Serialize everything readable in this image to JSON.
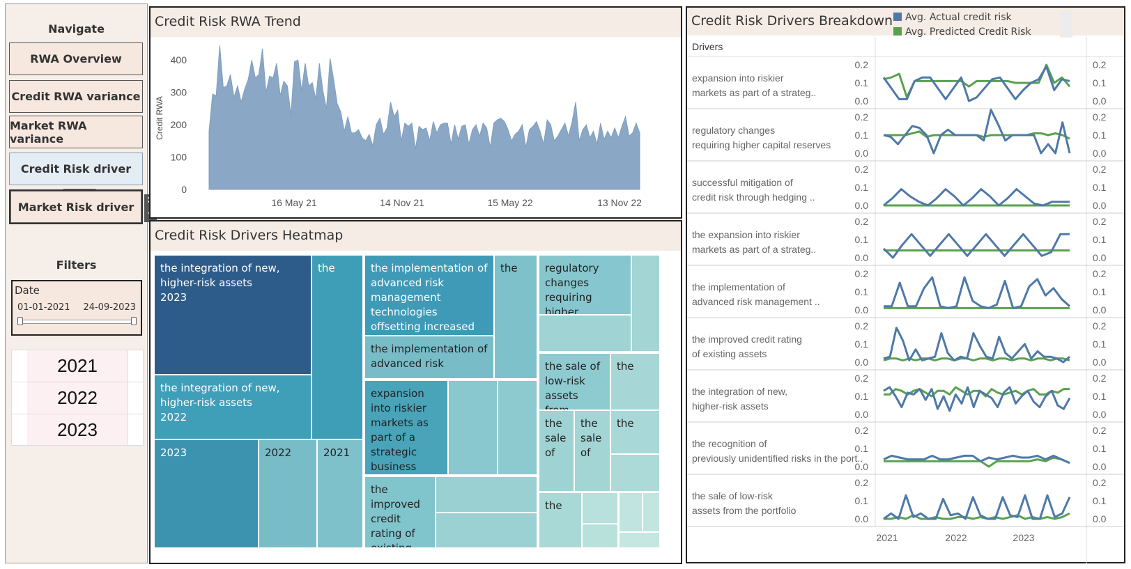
{
  "sidebar": {
    "navigate_title": "Navigate",
    "buttons": [
      "RWA Overview",
      "Credit RWA variance",
      "Market RWA variance",
      "Credit Risk driver",
      "Market Risk driver"
    ],
    "close_glyph": "✕",
    "dropdown_glyph": "▾",
    "filters_title": "Filters",
    "date_filter": {
      "label": "Date",
      "from": "01-01-2021",
      "to": "24-09-2023"
    },
    "years": [
      "2021",
      "2022",
      "2023"
    ]
  },
  "trend": {
    "title": "Credit Risk RWA Trend",
    "chart_data": {
      "type": "area",
      "title": "Credit Risk RWA Trend",
      "ylabel": "Credit RWA",
      "ylim": [
        0,
        450
      ],
      "yticks": [
        0,
        100,
        200,
        300,
        400
      ],
      "xtick_labels": [
        "16 May 21",
        "14 Nov 21",
        "15 May 22",
        "13 Nov 22"
      ],
      "color": "#8aa7c6",
      "values": [
        180,
        295,
        290,
        445,
        315,
        320,
        355,
        285,
        320,
        270,
        310,
        340,
        400,
        345,
        355,
        435,
        300,
        350,
        345,
        390,
        290,
        335,
        320,
        230,
        395,
        400,
        305,
        390,
        320,
        330,
        280,
        390,
        305,
        250,
        405,
        340,
        265,
        240,
        180,
        225,
        175,
        175,
        185,
        160,
        150,
        170,
        135,
        200,
        220,
        170,
        190,
        270,
        225,
        245,
        150,
        205,
        195,
        205,
        125,
        195,
        185,
        190,
        150,
        210,
        175,
        200,
        205,
        205,
        140,
        200,
        155,
        195,
        200,
        140,
        185,
        200,
        165,
        205,
        190,
        130,
        205,
        215,
        220,
        210,
        185,
        150,
        170,
        180,
        200,
        130,
        185,
        195,
        210,
        180,
        140,
        215,
        200,
        150,
        165,
        185,
        205,
        165,
        210,
        270,
        150,
        185,
        200,
        160,
        180,
        140,
        205,
        155,
        180,
        160,
        190,
        160,
        195,
        225,
        165,
        175,
        205,
        175
      ]
    }
  },
  "heatmap": {
    "title": "Credit Risk Drivers Heatmap",
    "cells": [
      {
        "text": "the integration of new, higher-risk assets\n2023",
        "color": "#2e5c8a",
        "fg": "#fff"
      },
      {
        "text": "the",
        "color": "#3f9eb7",
        "fg": "#fff"
      },
      {
        "text": "the integration of new, higher-risk assets\n2022",
        "color": "#3f9eb8",
        "fg": "#fff"
      },
      {
        "text": "2023",
        "color": "#3b93b0",
        "fg": "#fff"
      },
      {
        "text": "2022",
        "color": "#78bcc7",
        "fg": "#222"
      },
      {
        "text": "2021",
        "color": "#7fc1cb",
        "fg": "#222"
      },
      {
        "text": "the implementation of advanced risk management technologies offsetting increased credit risk",
        "color": "#3f9ab8",
        "fg": "#fff"
      },
      {
        "text": "the",
        "color": "#7ec1ca",
        "fg": "#222"
      },
      {
        "text": "the implementation of advanced risk",
        "color": "#78bcc8",
        "fg": "#222"
      },
      {
        "text": "expansion into riskier markets as part of a strategic business decision",
        "color": "#49a4ba",
        "fg": "#222"
      },
      {
        "text": "",
        "color": "#89c8ce",
        "fg": "#222"
      },
      {
        "text": "",
        "color": "#8ccacf",
        "fg": "#222"
      },
      {
        "text": "the improved credit rating of existing",
        "color": "#80c4cc",
        "fg": "#222"
      },
      {
        "text": "",
        "color": "#9ad0d2",
        "fg": "#222"
      },
      {
        "text": "",
        "color": "#9bd1d3",
        "fg": "#222"
      },
      {
        "text": "regulatory changes requiring higher",
        "color": "#86c6ce",
        "fg": "#222"
      },
      {
        "text": "",
        "color": "#a3d5d5",
        "fg": "#222"
      },
      {
        "text": "",
        "color": "#9fd3d4",
        "fg": "#222"
      },
      {
        "text": "the sale of low-risk assets from",
        "color": "#8ecbd0",
        "fg": "#222"
      },
      {
        "text": "the",
        "color": "#a6d7d6",
        "fg": "#222"
      },
      {
        "text": "the sale of",
        "color": "#9ed2d3",
        "fg": "#222"
      },
      {
        "text": "the sale of",
        "color": "#a3d5d5",
        "fg": "#222"
      },
      {
        "text": "the",
        "color": "#a8d8d7",
        "fg": "#222"
      },
      {
        "text": "",
        "color": "#acdad8",
        "fg": "#222"
      },
      {
        "text": "the",
        "color": "#a9d9d7",
        "fg": "#222"
      },
      {
        "text": "",
        "color": "#b8e0dc",
        "fg": "#222"
      },
      {
        "text": "",
        "color": "#b9e1dc",
        "fg": "#222"
      },
      {
        "text": "",
        "color": "#c0e4df",
        "fg": "#222"
      },
      {
        "text": "",
        "color": "#c3e5e0",
        "fg": "#222"
      },
      {
        "text": "",
        "color": "#c6e6e1",
        "fg": "#222"
      }
    ]
  },
  "drivers": {
    "title": "Credit Risk Drivers Breakdown",
    "column_header": "Drivers",
    "legend": [
      {
        "label": "Avg. Actual credit risk",
        "color": "#4e79a7"
      },
      {
        "label": "Avg. Predicted Credit Risk",
        "color": "#59a14f"
      }
    ],
    "yticks": [
      "0.2",
      "0.1",
      "0.0"
    ],
    "xtick_labels": [
      "2021",
      "2022",
      "2023"
    ],
    "chart_data": {
      "type": "line",
      "title": "Credit Risk Drivers Breakdown",
      "ylim": [
        0,
        0.2
      ],
      "rows": [
        {
          "label": "expansion into riskier markets as part of a strateg..",
          "actual": [
            0.13,
            0.07,
            0.01,
            0.01,
            0.11,
            0.13,
            0.13,
            0.07,
            0.01,
            0.07,
            0.13,
            0.0,
            0.02,
            0.07,
            0.12,
            0.13,
            0.07,
            0.01,
            0.06,
            0.1,
            0.12,
            0.19,
            0.06,
            0.12,
            0.11
          ],
          "predicted": [
            0.12,
            0.13,
            0.15,
            0.02,
            0.11,
            0.11,
            0.11,
            0.11,
            0.11,
            0.11,
            0.11,
            0.08,
            0.11,
            0.11,
            0.11,
            0.11,
            0.11,
            0.1,
            0.1,
            0.1,
            0.1,
            0.2,
            0.1,
            0.13,
            0.08
          ]
        },
        {
          "label": "regulatory changes requiring higher capital reserves",
          "actual": [
            0.1,
            0.09,
            0.05,
            0.1,
            0.15,
            0.14,
            0.1,
            0.0,
            0.1,
            0.13,
            0.1,
            0.1,
            0.1,
            0.1,
            0.07,
            0.24,
            0.16,
            0.07,
            0.1,
            0.1,
            0.1,
            0.1,
            0.0,
            0.05,
            0.0,
            0.17,
            0.0
          ],
          "predicted": [
            0.1,
            0.1,
            0.1,
            0.1,
            0.11,
            0.12,
            0.09,
            0.1,
            0.1,
            0.1,
            0.1,
            0.1,
            0.1,
            0.1,
            0.09,
            0.1,
            0.1,
            0.1,
            0.1,
            0.1,
            0.1,
            0.11,
            0.11,
            0.1,
            0.11,
            0.1,
            0.08
          ]
        },
        {
          "label": "successful mitigation of credit risk through hedging ..",
          "actual": [
            0.0,
            0.04,
            0.09,
            0.05,
            0.02,
            0.0,
            0.04,
            0.09,
            0.05,
            0.0,
            0.04,
            0.09,
            0.05,
            0.0,
            0.04,
            0.09,
            0.05,
            0.01,
            0.0,
            0.02,
            0.02,
            0.02
          ],
          "predicted": [
            0.0,
            0.0,
            0.0,
            0.0,
            0.0,
            0.0,
            0.0,
            0.0,
            0.0,
            0.0,
            0.0,
            0.0,
            0.0,
            0.0,
            0.0,
            0.0,
            0.0,
            0.0,
            0.0,
            0.0,
            0.0,
            0.0
          ]
        },
        {
          "label": "the expansion into riskier markets as part of a strateg..",
          "actual": [
            0.05,
            0.0,
            0.07,
            0.13,
            0.07,
            0.01,
            0.07,
            0.13,
            0.07,
            0.01,
            0.07,
            0.13,
            0.07,
            0.01,
            0.07,
            0.13,
            0.07,
            0.01,
            0.03,
            0.13,
            0.13
          ],
          "predicted": [
            0.04,
            0.04,
            0.04,
            0.04,
            0.04,
            0.04,
            0.04,
            0.04,
            0.04,
            0.04,
            0.04,
            0.04,
            0.04,
            0.04,
            0.04,
            0.04,
            0.04,
            0.04,
            0.04,
            0.04,
            0.04
          ]
        },
        {
          "label": "the implementation of advanced risk management ..",
          "actual": [
            0.02,
            0.02,
            0.15,
            0.02,
            0.02,
            0.12,
            0.18,
            0.02,
            0.01,
            0.02,
            0.18,
            0.05,
            0.02,
            0.01,
            0.03,
            0.16,
            0.01,
            0.02,
            0.13,
            0.17,
            0.08,
            0.12,
            0.06,
            0.02
          ],
          "predicted": [
            0.01,
            0.01,
            0.01,
            0.01,
            0.01,
            0.01,
            0.01,
            0.01,
            0.01,
            0.01,
            0.01,
            0.01,
            0.01,
            0.01,
            0.01,
            0.01,
            0.01,
            0.01,
            0.01,
            0.01,
            0.01,
            0.01,
            0.01,
            0.01
          ]
        },
        {
          "label": "the improved credit rating of existing assets",
          "actual": [
            0.02,
            0.03,
            0.19,
            0.12,
            0.01,
            0.07,
            0.01,
            0.02,
            0.03,
            0.16,
            0.05,
            0.01,
            0.03,
            0.02,
            0.16,
            0.09,
            0.03,
            0.02,
            0.14,
            0.05,
            0.02,
            0.06,
            0.1,
            0.02,
            0.06,
            0.03,
            0.03,
            0.02,
            0.0,
            0.03
          ],
          "predicted": [
            0.01,
            0.02,
            0.02,
            0.01,
            0.02,
            0.01,
            0.02,
            0.02,
            0.01,
            0.02,
            0.02,
            0.01,
            0.02,
            0.02,
            0.01,
            0.02,
            0.02,
            0.01,
            0.02,
            0.02,
            0.01,
            0.02,
            0.02,
            0.01,
            0.02,
            0.02,
            0.01,
            0.02,
            0.02,
            0.01
          ]
        },
        {
          "label": "the integration of new, higher-risk assets",
          "actual": [
            0.13,
            0.15,
            0.1,
            0.04,
            0.12,
            0.11,
            0.14,
            0.08,
            0.14,
            0.03,
            0.1,
            0.02,
            0.11,
            0.06,
            0.15,
            0.04,
            0.13,
            0.11,
            0.09,
            0.04,
            0.12,
            0.15,
            0.06,
            0.1,
            0.13,
            0.07,
            0.04,
            0.1,
            0.13,
            0.05,
            0.03,
            0.09
          ],
          "predicted": [
            0.11,
            0.11,
            0.14,
            0.13,
            0.11,
            0.13,
            0.14,
            0.12,
            0.1,
            0.13,
            0.13,
            0.11,
            0.15,
            0.13,
            0.11,
            0.13,
            0.13,
            0.1,
            0.14,
            0.12,
            0.11,
            0.12,
            0.13,
            0.11,
            0.13,
            0.14,
            0.11,
            0.11,
            0.13,
            0.12,
            0.14,
            0.14
          ]
        },
        {
          "label": "the recognition of previously unidentified risks in the port..",
          "actual": [
            0.04,
            0.06,
            0.05,
            0.04,
            0.04,
            0.04,
            0.06,
            0.04,
            0.04,
            0.05,
            0.06,
            0.06,
            0.03,
            0.05,
            0.04,
            0.05,
            0.06,
            0.05,
            0.05,
            0.06,
            0.04,
            0.06,
            0.04,
            0.02
          ],
          "predicted": [
            0.03,
            0.03,
            0.03,
            0.03,
            0.03,
            0.03,
            0.03,
            0.03,
            0.03,
            0.03,
            0.03,
            0.03,
            0.03,
            0.0,
            0.03,
            0.03,
            0.03,
            0.03,
            0.03,
            0.04,
            0.03,
            0.05,
            0.04,
            0.02
          ]
        },
        {
          "label": "the sale of low-risk assets from the portfolio",
          "actual": [
            0.0,
            0.03,
            0.0,
            0.13,
            0.01,
            0.03,
            0.0,
            0.0,
            0.11,
            0.02,
            0.03,
            0.0,
            0.12,
            0.02,
            0.0,
            0.0,
            0.12,
            0.02,
            0.01,
            0.13,
            0.0,
            0.0,
            0.13,
            0.01,
            0.03,
            0.12
          ],
          "predicted": [
            0.0,
            0.0,
            0.01,
            0.0,
            0.02,
            0.0,
            0.0,
            0.01,
            0.0,
            0.0,
            0.01,
            0.01,
            0.0,
            0.01,
            0.0,
            0.01,
            0.0,
            0.01,
            0.02,
            0.0,
            0.01,
            0.0,
            0.01,
            0.0,
            0.01,
            0.03
          ]
        }
      ]
    }
  }
}
